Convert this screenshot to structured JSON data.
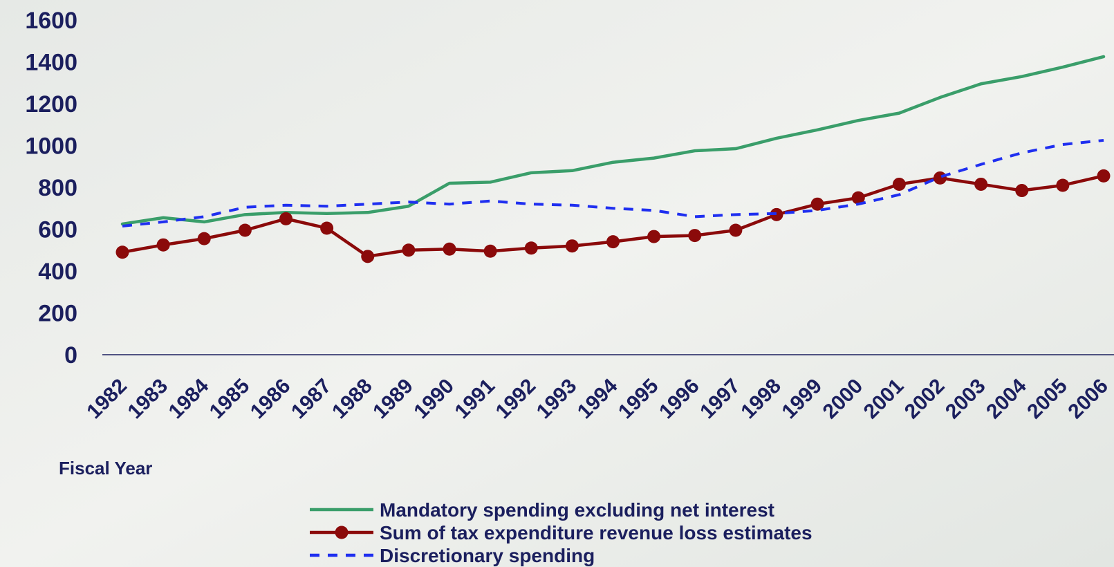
{
  "chart_data": {
    "type": "line",
    "x_label": "Fiscal Year",
    "categories": [
      "1982",
      "1983",
      "1984",
      "1985",
      "1986",
      "1987",
      "1988",
      "1989",
      "1990",
      "1991",
      "1992",
      "1993",
      "1994",
      "1995",
      "1996",
      "1997",
      "1998",
      "1999",
      "2000",
      "2001",
      "2002",
      "2003",
      "2004",
      "2005",
      "2006"
    ],
    "ylim": [
      0,
      1600
    ],
    "yticks": [
      0,
      200,
      400,
      600,
      800,
      1000,
      1200,
      1400,
      1600
    ],
    "grid": false,
    "series": [
      {
        "name": "Mandatory spending excluding net interest",
        "color": "#3a9e6a",
        "style": "solid",
        "markers": false,
        "values": [
          625,
          655,
          635,
          670,
          680,
          675,
          680,
          710,
          820,
          825,
          870,
          880,
          920,
          940,
          975,
          985,
          1035,
          1075,
          1120,
          1155,
          1230,
          1295,
          1330,
          1375,
          1425
        ]
      },
      {
        "name": "Sum of tax expenditure revenue loss estimates",
        "color": "#8b0a0a",
        "style": "solid",
        "markers": true,
        "values": [
          490,
          525,
          555,
          595,
          650,
          605,
          470,
          500,
          505,
          495,
          510,
          520,
          540,
          565,
          570,
          595,
          670,
          720,
          750,
          815,
          845,
          815,
          785,
          810,
          855
        ]
      },
      {
        "name": "Discretionary spending",
        "color": "#1f2ff0",
        "style": "dashed",
        "markers": false,
        "values": [
          615,
          635,
          660,
          705,
          715,
          710,
          720,
          730,
          720,
          735,
          720,
          715,
          700,
          690,
          660,
          670,
          675,
          690,
          720,
          765,
          850,
          910,
          965,
          1005,
          1025
        ]
      }
    ]
  }
}
